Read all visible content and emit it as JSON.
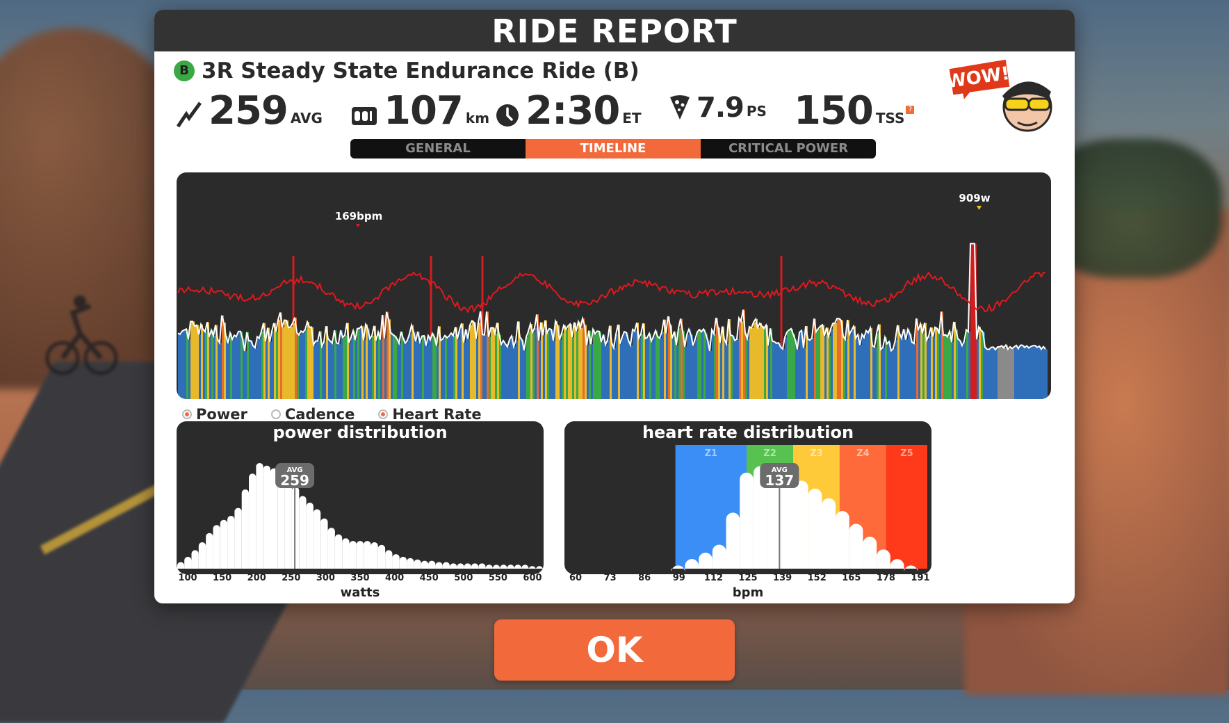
{
  "window": {
    "title": "RIDE REPORT"
  },
  "workout": {
    "badge": "B",
    "name": "3R Steady State Endurance Ride (B)"
  },
  "stats": {
    "power": {
      "value": "259",
      "unit": "AVG",
      "icon": "power-bolt-icon"
    },
    "distance": {
      "value": "107",
      "unit": "km",
      "icon": "odometer-icon"
    },
    "time": {
      "value": "2:30",
      "unit": "ET",
      "icon": "clock-icon"
    },
    "pizza": {
      "value": "7.9",
      "unit": "PS",
      "icon": "pizza-slice-icon"
    },
    "tss": {
      "value": "150",
      "unit": "TSS",
      "help": "?"
    }
  },
  "wow_badge": {
    "text": "WOW!"
  },
  "tabs": [
    {
      "label": "GENERAL",
      "active": false
    },
    {
      "label": "TIMELINE",
      "active": true
    },
    {
      "label": "CRITICAL POWER",
      "active": false
    }
  ],
  "timeline": {
    "peak_hr_label": "169bpm",
    "peak_power_label": "909w",
    "zone_colors": [
      "#2f6fba",
      "#3aa845",
      "#e8b92b",
      "#e86a2c",
      "#d21e1e",
      "#8a8a8a"
    ],
    "hr_line_color": "#e0191e",
    "power_line_color": "#ffffff"
  },
  "legend": [
    {
      "label": "Power",
      "selected": true
    },
    {
      "label": "Cadence",
      "selected": false
    },
    {
      "label": "Heart Rate",
      "selected": true
    }
  ],
  "power_distribution": {
    "title": "power distribution",
    "avg_label": "AVG",
    "avg_value": "259",
    "ticks": [
      "100",
      "150",
      "200",
      "250",
      "300",
      "350",
      "400",
      "450",
      "500",
      "550",
      "600"
    ],
    "axis_label": "watts"
  },
  "hr_distribution": {
    "title": "heart rate distribution",
    "avg_label": "AVG",
    "avg_value": "137",
    "zones": [
      "Z1",
      "Z2",
      "Z3",
      "Z4",
      "Z5"
    ],
    "zone_colors": [
      "#3a8ef5",
      "#57c24f",
      "#ffca3a",
      "#ff6a3a",
      "#ff3a1a"
    ],
    "ticks": [
      "60",
      "73",
      "86",
      "99",
      "112",
      "125",
      "139",
      "152",
      "165",
      "178",
      "191"
    ],
    "axis_label": "bpm"
  },
  "chart_data": [
    {
      "type": "area",
      "title": "power distribution",
      "xlabel": "watts",
      "x": [
        100,
        110,
        120,
        130,
        140,
        150,
        160,
        170,
        180,
        190,
        200,
        210,
        220,
        230,
        240,
        250,
        260,
        270,
        280,
        290,
        300,
        310,
        320,
        330,
        340,
        350,
        360,
        370,
        380,
        390,
        400,
        410,
        420,
        430,
        440,
        450,
        460,
        470,
        480,
        490,
        500,
        510,
        520,
        530,
        540,
        550,
        560,
        570,
        580,
        590,
        600
      ],
      "values": [
        5,
        9,
        14,
        20,
        27,
        33,
        37,
        40,
        46,
        60,
        72,
        80,
        78,
        76,
        72,
        67,
        62,
        55,
        50,
        45,
        38,
        31,
        26,
        23,
        21,
        21,
        21,
        20,
        18,
        14,
        11,
        9,
        8,
        7,
        6,
        6,
        5,
        5,
        4,
        4,
        4,
        4,
        4,
        3,
        3,
        3,
        3,
        3,
        3,
        2,
        2
      ],
      "xlim": [
        100,
        600
      ],
      "avg": 259
    },
    {
      "type": "area",
      "title": "heart rate distribution",
      "xlabel": "bpm",
      "x": [
        60,
        65,
        70,
        75,
        80,
        85,
        90,
        95,
        100,
        105,
        110,
        115,
        120,
        125,
        130,
        135,
        140,
        145,
        150,
        155,
        160,
        165,
        170,
        175,
        180,
        185,
        190
      ],
      "values": [
        0,
        0,
        0,
        0,
        0,
        0,
        0,
        0,
        2,
        6,
        10,
        15,
        35,
        60,
        64,
        66,
        60,
        55,
        50,
        44,
        36,
        28,
        20,
        12,
        6,
        2,
        0
      ],
      "xlim": [
        60,
        191
      ],
      "avg": 137
    },
    {
      "type": "line",
      "title": "timeline",
      "series": [
        {
          "name": "Heart Rate",
          "peak": 169
        },
        {
          "name": "Power",
          "peak": 909
        }
      ]
    }
  ]
}
